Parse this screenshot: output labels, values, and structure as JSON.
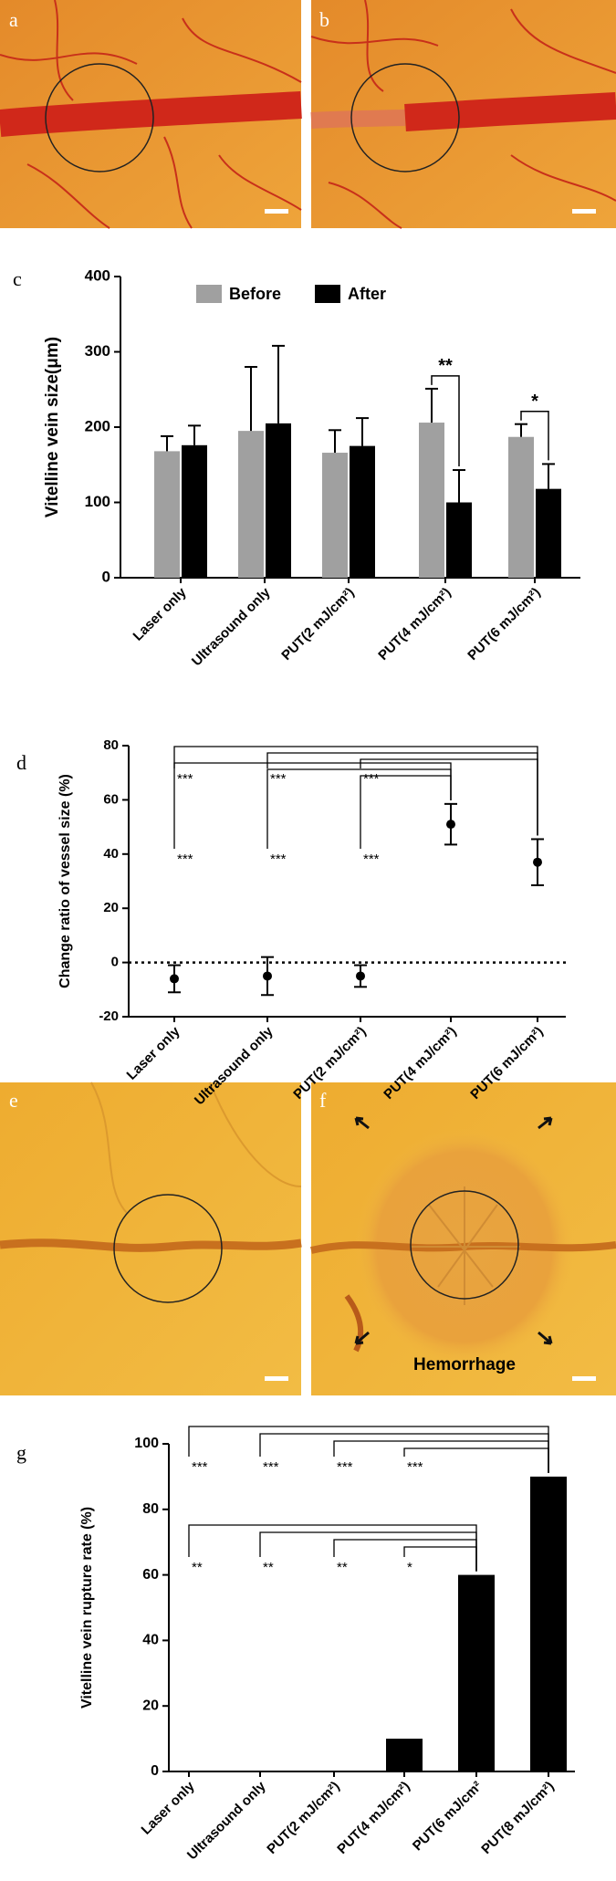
{
  "photo_labels": [
    "a",
    "b",
    "e",
    "f"
  ],
  "photo_annotation": "Hemorrhage",
  "chart_data": [
    {
      "type": "bar",
      "label": "c",
      "ylabel": "Vitelline vein size(μm)",
      "categories": [
        "Laser only",
        "Ultrasound only",
        "PUT(2 mJ/cm²)",
        "PUT(4 mJ/cm²)",
        "PUT(6 mJ/cm²)"
      ],
      "series": [
        {
          "name": "Before",
          "color": "#a0a0a0",
          "values": [
            168,
            195,
            166,
            206,
            187
          ],
          "errors": [
            20,
            85,
            30,
            45,
            17
          ]
        },
        {
          "name": "After",
          "color": "#000000",
          "values": [
            176,
            205,
            175,
            100,
            118
          ],
          "errors": [
            26,
            103,
            37,
            43,
            33
          ]
        }
      ],
      "ylim": [
        0,
        400
      ],
      "yticks": [
        0,
        100,
        200,
        300,
        400
      ],
      "legend": "top",
      "annotations": [
        "**",
        "*"
      ]
    },
    {
      "type": "errorbar",
      "label": "d",
      "ylabel": "Change ratio of vessel size (%)",
      "categories": [
        "Laser only",
        "Ultrasound only",
        "PUT(2 mJ/cm²)",
        "PUT(4 mJ/cm²)",
        "PUT(6 mJ/cm²)"
      ],
      "values": [
        -6,
        -5,
        -5,
        51,
        37
      ],
      "errors": [
        5,
        7,
        4,
        7.5,
        8.5
      ],
      "color": "#000000",
      "ylim": [
        -20,
        80
      ],
      "yticks": [
        -20,
        0,
        20,
        40,
        60,
        80
      ],
      "reference_line": 0,
      "annotations": [
        "***",
        "***",
        "***",
        "***",
        "***",
        "***"
      ]
    },
    {
      "type": "bar",
      "label": "g",
      "ylabel": "Vitelline vein rupture rate (%)",
      "categories": [
        "Laser only",
        "Ultrasound only",
        "PUT(2 mJ/cm²)",
        "PUT(4 mJ/cm²)",
        "PUT(6 mJ/cm²",
        "PUT(8 mJ/cm²)"
      ],
      "values": [
        0,
        0,
        0,
        10,
        60,
        90
      ],
      "color": "#000000",
      "ylim": [
        0,
        100
      ],
      "yticks": [
        0,
        20,
        40,
        60,
        80,
        100
      ],
      "annotations": [
        "***",
        "***",
        "***",
        "***",
        "**",
        "**",
        "**",
        "*"
      ]
    }
  ]
}
